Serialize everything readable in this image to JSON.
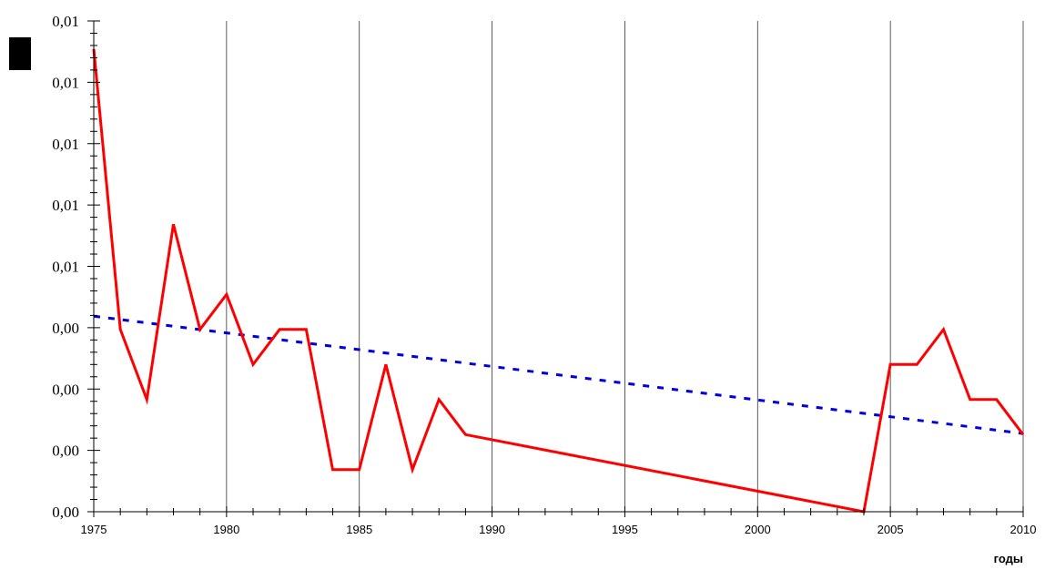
{
  "chart_data": {
    "type": "line",
    "title": "",
    "xlabel": "годы",
    "ylabel": "",
    "xlim": [
      1975,
      2010
    ],
    "ylim": [
      0.0,
      0.014
    ],
    "x_ticks": [
      "1975",
      "1980",
      "1985",
      "1990",
      "1995",
      "2000",
      "2005",
      "2010"
    ],
    "y_ticks": [
      "0,00",
      "0,00",
      "0,00",
      "0,00",
      "0,01",
      "0,01",
      "0,01",
      "0,01"
    ],
    "grid": "vertical lines at labelled years",
    "legend": "none",
    "colors": {
      "data": "#ff0000",
      "trend": "#0000dd",
      "axis": "#000000",
      "legend_marker": "#000000"
    },
    "series": [
      {
        "style": "solid",
        "color": "#ff0000",
        "x": [
          1975,
          1976,
          1977,
          1978,
          1979,
          1980,
          1981,
          1982,
          1983,
          1984,
          1985,
          1986,
          1987,
          1988,
          1989,
          2004,
          2005,
          2006,
          2007,
          2008,
          2009,
          2010
        ],
        "y": [
          0.0132,
          0.0052,
          0.0032,
          0.0082,
          0.0052,
          0.0062,
          0.0042,
          0.0052,
          0.0052,
          0.0012,
          0.0012,
          0.0042,
          0.0012,
          0.0032,
          0.0022,
          0.0,
          0.0042,
          0.0042,
          0.0052,
          0.0032,
          0.0032,
          0.0022
        ]
      },
      {
        "style": "dotted",
        "color": "#0000dd",
        "x": [
          1975,
          2010
        ],
        "y": [
          0.00558,
          0.00223
        ]
      }
    ]
  }
}
